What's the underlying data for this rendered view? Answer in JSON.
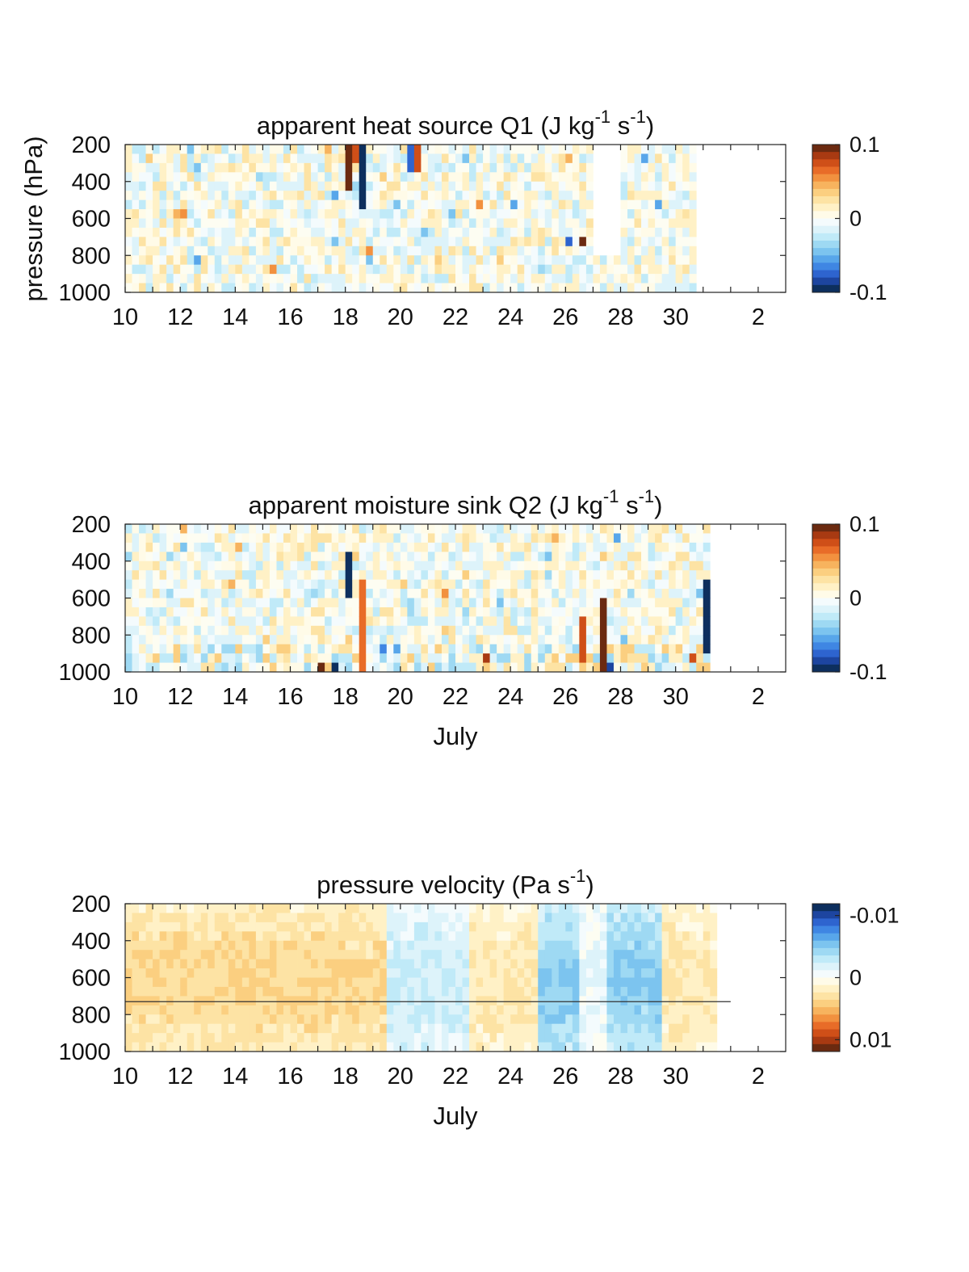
{
  "chart_data": [
    {
      "type": "heatmap",
      "title": "apparent heat source Q1 (J kg",
      "title_unit_parts": [
        "-1",
        " s",
        "-1",
        ")"
      ],
      "ylabel": "pressure (hPa)",
      "xlabel": "",
      "x_tick_labels": [
        "10",
        "12",
        "14",
        "16",
        "18",
        "20",
        "22",
        "24",
        "26",
        "28",
        "30",
        "2"
      ],
      "x_range": [
        "July 10",
        "August 3"
      ],
      "y_tick_labels": [
        "200",
        "400",
        "600",
        "800",
        "1000"
      ],
      "y_range": [
        200,
        1000
      ],
      "colorbar": {
        "ticks": [
          "0.1",
          "0",
          "-0.1"
        ],
        "range": [
          -0.1,
          0.1
        ],
        "palette": "diverging-blue-red",
        "high_color": "#6b2a10",
        "low_color": "#0d2f5e"
      },
      "data_end_day": 30.8,
      "missing_blocks": [
        [
          27,
          28,
          200,
          800
        ]
      ],
      "strong_features": [
        {
          "day": 18.0,
          "p_top": 200,
          "p_bottom": 450,
          "value": 0.09
        },
        {
          "day": 18.3,
          "p_top": 200,
          "p_bottom": 300,
          "value": 0.07
        },
        {
          "day": 18.6,
          "p_top": 200,
          "p_bottom": 550,
          "value": -0.1
        },
        {
          "day": 20.2,
          "p_top": 200,
          "p_bottom": 350,
          "value": -0.07
        },
        {
          "day": 20.6,
          "p_top": 200,
          "p_bottom": 350,
          "value": 0.08
        },
        {
          "day": 26.1,
          "p_top": 700,
          "p_bottom": 750,
          "value": -0.08
        },
        {
          "day": 26.6,
          "p_top": 700,
          "p_bottom": 750,
          "value": 0.09
        }
      ]
    },
    {
      "type": "heatmap",
      "title": "apparent moisture sink Q2 (J kg",
      "title_unit_parts": [
        "-1",
        " s",
        "-1",
        ")"
      ],
      "ylabel": "",
      "xlabel": "July",
      "x_tick_labels": [
        "10",
        "12",
        "14",
        "16",
        "18",
        "20",
        "22",
        "24",
        "26",
        "28",
        "30",
        "2"
      ],
      "x_range": [
        "July 10",
        "August 3"
      ],
      "y_tick_labels": [
        "200",
        "400",
        "600",
        "800",
        "1000"
      ],
      "y_range": [
        200,
        1000
      ],
      "colorbar": {
        "ticks": [
          "0.1",
          "0",
          "-0.1"
        ],
        "range": [
          -0.1,
          0.1
        ],
        "palette": "diverging-blue-red",
        "high_color": "#6b2a10",
        "low_color": "#0d2f5e"
      },
      "data_end_day": 31.3,
      "strong_features": [
        {
          "day": 17.0,
          "p_top": 950,
          "p_bottom": 1000,
          "value": 0.1
        },
        {
          "day": 17.6,
          "p_top": 950,
          "p_bottom": 1000,
          "value": -0.1
        },
        {
          "day": 18.0,
          "p_top": 350,
          "p_bottom": 600,
          "value": -0.09
        },
        {
          "day": 18.6,
          "p_top": 500,
          "p_bottom": 1000,
          "value": 0.06
        },
        {
          "day": 26.6,
          "p_top": 700,
          "p_bottom": 950,
          "value": 0.08
        },
        {
          "day": 27.3,
          "p_top": 600,
          "p_bottom": 1000,
          "value": 0.09
        },
        {
          "day": 31.0,
          "p_top": 500,
          "p_bottom": 900,
          "value": -0.1
        },
        {
          "day": 31.2,
          "p_top": 850,
          "p_bottom": 1000,
          "value": 0.08
        }
      ]
    },
    {
      "type": "heatmap",
      "title": "pressure velocity (Pa s",
      "title_unit_parts": [
        "-1",
        ")"
      ],
      "ylabel": "",
      "xlabel": "July",
      "x_tick_labels": [
        "10",
        "12",
        "14",
        "16",
        "18",
        "20",
        "22",
        "24",
        "26",
        "28",
        "30",
        "2"
      ],
      "x_range": [
        "July 10",
        "August 3"
      ],
      "y_tick_labels": [
        "200",
        "400",
        "600",
        "800",
        "1000"
      ],
      "y_range": [
        200,
        1000
      ],
      "colorbar": {
        "ticks": [
          "-0.01",
          "0",
          "0.01"
        ],
        "range": [
          -0.01,
          0.01
        ],
        "palette": "diverging-red-blue-reversed",
        "high_color": "#0d2f5e",
        "low_color": "#6b2a10"
      },
      "data_end_day": 31.5,
      "reference_line_hPa": 730,
      "reference_line_end_day": 32.0,
      "regimes": [
        {
          "from_day": 10,
          "to_day": 19.5,
          "value": 0.003
        },
        {
          "from_day": 19.5,
          "to_day": 22.5,
          "value": -0.002
        },
        {
          "from_day": 22.5,
          "to_day": 25,
          "value": 0.002
        },
        {
          "from_day": 25,
          "to_day": 26.5,
          "value": -0.004
        },
        {
          "from_day": 26.5,
          "to_day": 27.5,
          "value": -0.001
        },
        {
          "from_day": 27.5,
          "to_day": 29.5,
          "value": -0.004
        },
        {
          "from_day": 29.5,
          "to_day": 31.5,
          "value": 0.002
        }
      ]
    }
  ]
}
